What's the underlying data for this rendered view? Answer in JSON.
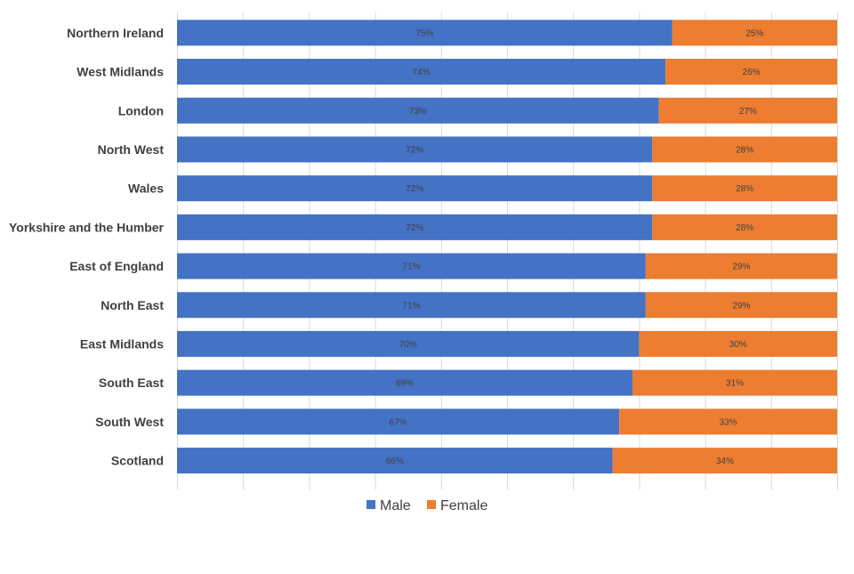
{
  "chart_data": {
    "type": "bar",
    "orientation": "horizontal",
    "stacked": "percent",
    "title": "",
    "xlabel": "",
    "ylabel": "",
    "xlim": [
      0,
      100
    ],
    "grid": true,
    "legend_position": "bottom",
    "categories": [
      "Northern Ireland",
      "West Midlands",
      "London",
      "North West",
      "Wales",
      "Yorkshire and the Humber",
      "East of England",
      "North East",
      "East Midlands",
      "South East",
      "South West",
      "Scotland"
    ],
    "series": [
      {
        "name": "Male",
        "color": "#4472c4",
        "values": [
          75,
          74,
          73,
          72,
          72,
          72,
          71,
          71,
          70,
          69,
          67,
          66
        ],
        "labels": [
          "75%",
          "74%",
          "73%",
          "72%",
          "72%",
          "72%",
          "71%",
          "71%",
          "70%",
          "69%",
          "67%",
          "66%"
        ]
      },
      {
        "name": "Female",
        "color": "#ed7d31",
        "values": [
          25,
          26,
          27,
          28,
          28,
          28,
          29,
          29,
          30,
          31,
          33,
          34
        ],
        "labels": [
          "25%",
          "26%",
          "27%",
          "28%",
          "28%",
          "28%",
          "29%",
          "29%",
          "30%",
          "31%",
          "33%",
          "34%"
        ]
      }
    ]
  }
}
